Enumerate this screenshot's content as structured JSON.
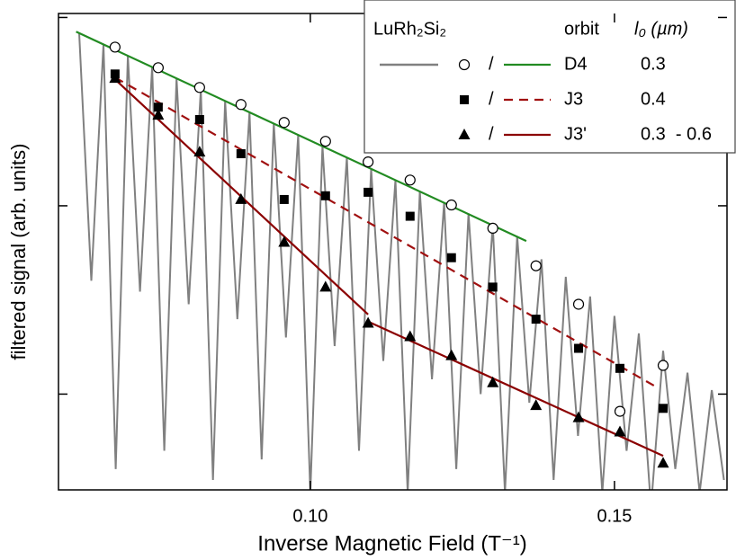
{
  "chart_data": {
    "type": "line",
    "x_label": "Inverse Magnetic Field (T⁻¹)",
    "y_label": "filtered signal (arb. units)",
    "xlim": [
      0.0586,
      0.1685
    ],
    "xticks": [
      {
        "value": 0.1,
        "label": "0.10"
      },
      0.15
    ],
    "ylim": [
      0.31,
      105
    ],
    "yticks": [
      1,
      10,
      100
    ],
    "y_log": true,
    "y_tick_labels": false,
    "legend_position": "upper right",
    "legend_headers": {
      "sample": "LuRh₂Si₂",
      "orbit": "orbit",
      "l0": "l₀ (µm)"
    },
    "separator": "/",
    "signal": {
      "name": "LuRh₂Si₂",
      "color": "#808080",
      "x": [
        0.062,
        0.064,
        0.066,
        0.068,
        0.07,
        0.072,
        0.074,
        0.076,
        0.078,
        0.08,
        0.082,
        0.084,
        0.086,
        0.088,
        0.09,
        0.092,
        0.094,
        0.096,
        0.098,
        0.1,
        0.102,
        0.104,
        0.106,
        0.108,
        0.11,
        0.112,
        0.114,
        0.116,
        0.118,
        0.12,
        0.122,
        0.124,
        0.126,
        0.128,
        0.13,
        0.132,
        0.134,
        0.136,
        0.138,
        0.14,
        0.142,
        0.144,
        0.146,
        0.148,
        0.15,
        0.152,
        0.154,
        0.156,
        0.158,
        0.16,
        0.162,
        0.164,
        0.166,
        0.168
      ],
      "values": [
        82.6,
        4,
        72,
        0.4,
        62.7,
        3.5,
        54.6,
        0.5,
        47.5,
        3,
        41.4,
        0.35,
        36.1,
        2.5,
        31.4,
        0.45,
        27.4,
        2,
        23.8,
        0.3,
        20.7,
        1.8,
        18.1,
        0.5,
        15.7,
        1.5,
        13.7,
        0.3,
        11.9,
        1.2,
        10.4,
        0.4,
        9.1,
        1,
        7.9,
        0.3,
        6.9,
        0.9,
        5.2,
        0.35,
        4.2,
        0.6,
        3.3,
        0.3,
        2.6,
        0.5,
        2.1,
        0.25,
        1.7,
        0.4,
        1.3,
        0.3,
        1.05,
        0.35
      ]
    },
    "series": [
      {
        "name": "D4",
        "l0": "0.3",
        "marker": "circle-open",
        "color": "#228b22",
        "dash": false,
        "x": [
          0.0679,
          0.075,
          0.0818,
          0.0886,
          0.0957,
          0.1025,
          0.1095,
          0.1164,
          0.1232,
          0.13,
          0.1371,
          0.1441,
          0.1509,
          0.158
        ],
        "values": [
          69.6,
          54.1,
          42.5,
          34.5,
          27.7,
          22.0,
          17.1,
          13.7,
          10.1,
          7.6,
          4.8,
          3.0,
          0.81,
          1.42
        ],
        "fit_x": [
          0.0615,
          0.1355
        ],
        "fit_values": [
          84,
          6.5
        ]
      },
      {
        "name": "J3",
        "l0": "0.4",
        "marker": "square",
        "color": "#a01010",
        "dash": true,
        "x": [
          0.0679,
          0.075,
          0.0818,
          0.0886,
          0.0957,
          0.1025,
          0.1095,
          0.1164,
          0.1232,
          0.13,
          0.1371,
          0.1441,
          0.1509,
          0.158
        ],
        "values": [
          50.1,
          33.4,
          28.7,
          18.9,
          10.8,
          11.3,
          11.8,
          8.8,
          5.3,
          3.7,
          2.5,
          1.75,
          1.37,
          0.84
        ],
        "fit_x": [
          0.0679,
          0.1567
        ],
        "fit_values": [
          48,
          1.1
        ]
      },
      {
        "name": "J3'",
        "l0": "0.3  - 0.6",
        "marker": "triangle",
        "color": "#8b0000",
        "dash": false,
        "x": [
          0.0679,
          0.075,
          0.0818,
          0.0886,
          0.0957,
          0.1025,
          0.1095,
          0.1164,
          0.1232,
          0.13,
          0.1371,
          0.1441,
          0.1509,
          0.158
        ],
        "values": [
          47.5,
          30.3,
          19.3,
          10.8,
          6.4,
          3.7,
          2.38,
          2.02,
          1.6,
          1.15,
          0.87,
          0.75,
          0.63,
          0.43
        ],
        "fit_x": [
          0.0679,
          0.1095,
          null,
          0.1095,
          0.158
        ],
        "fit_values": [
          46.9,
          2.65,
          null,
          2.43,
          0.47
        ]
      }
    ]
  }
}
